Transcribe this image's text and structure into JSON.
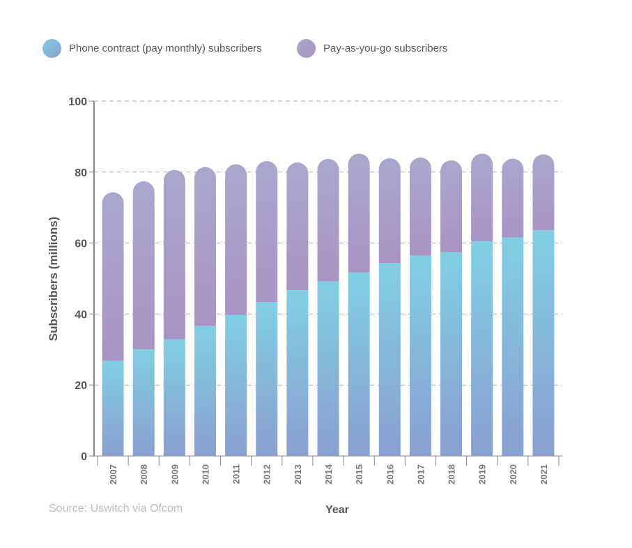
{
  "chart_data": {
    "type": "bar",
    "stacked": true,
    "categories": [
      "2007",
      "2008",
      "2009",
      "2010",
      "2011",
      "2012",
      "2013",
      "2014",
      "2015",
      "2016",
      "2017",
      "2018",
      "2019",
      "2020",
      "2021"
    ],
    "series": [
      {
        "name": "Phone contract (pay monthly) subscribers",
        "values": [
          26.8,
          30.0,
          32.9,
          36.6,
          39.7,
          43.4,
          46.7,
          49.2,
          51.7,
          54.4,
          56.5,
          57.4,
          60.5,
          61.6,
          63.6
        ],
        "color_top": "#80cfe4",
        "color_bottom": "#8a9fd0"
      },
      {
        "name": "Pay-as-you-go subscribers",
        "values": [
          47.5,
          47.4,
          47.7,
          44.8,
          42.5,
          39.7,
          36.0,
          34.5,
          33.5,
          29.5,
          27.6,
          25.9,
          24.7,
          22.2,
          21.4
        ],
        "color_top": "#a9a7cd",
        "color_bottom": "#a994c3"
      }
    ],
    "xlabel": "Year",
    "ylabel": "Subscribers (millions)",
    "ylim": [
      0,
      100
    ],
    "yticks": [
      "0",
      "20",
      "40",
      "60",
      "80",
      "100"
    ],
    "grid": true,
    "legend_position": "top-left"
  },
  "source": "Source: Uswitch via Ofcom"
}
